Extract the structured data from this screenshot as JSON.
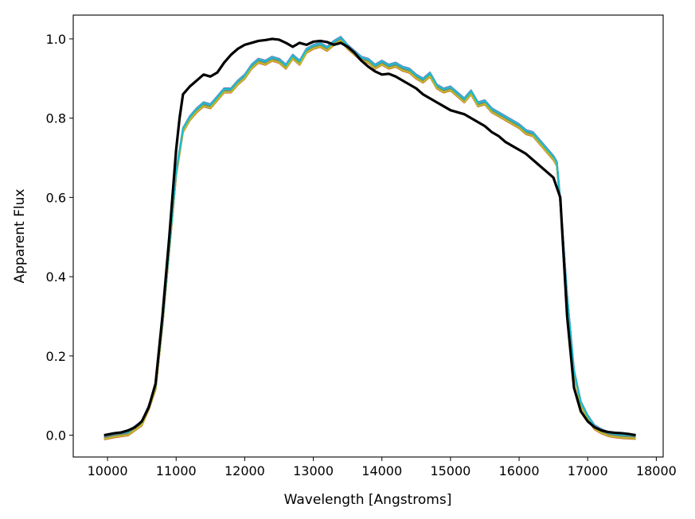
{
  "chart_data": {
    "type": "line",
    "xlabel": "Wavelength [Angstroms]",
    "ylabel": "Apparent Flux",
    "xlim": [
      9500,
      18100
    ],
    "ylim": [
      -0.055,
      1.06
    ],
    "xticks": [
      10000,
      11000,
      12000,
      13000,
      14000,
      15000,
      16000,
      17000,
      18000
    ],
    "xtick_labels": [
      "10000",
      "11000",
      "12000",
      "13000",
      "14000",
      "15000",
      "16000",
      "17000",
      "18000"
    ],
    "yticks": [
      0.0,
      0.2,
      0.4,
      0.6,
      0.8,
      1.0
    ],
    "ytick_labels": [
      "0.0",
      "0.2",
      "0.4",
      "0.6",
      "0.8",
      "1.0"
    ],
    "grid": false,
    "legend": "none",
    "bundle": {
      "colors": [
        "#1f77b4",
        "#ff7f0e",
        "#2ca02c",
        "#d62728",
        "#9467bd",
        "#8c564b",
        "#e377c2",
        "#7f7f7f",
        "#bcbd22",
        "#17becf"
      ],
      "x": [
        9950,
        10100,
        10300,
        10500,
        10600,
        10700,
        10800,
        10900,
        11000,
        11100,
        11200,
        11300,
        11400,
        11500,
        11600,
        11700,
        11800,
        11900,
        12000,
        12100,
        12200,
        12300,
        12400,
        12500,
        12600,
        12700,
        12800,
        12900,
        13000,
        13100,
        13200,
        13300,
        13400,
        13500,
        13600,
        13700,
        13800,
        13900,
        14000,
        14100,
        14200,
        14300,
        14400,
        14500,
        14600,
        14700,
        14800,
        14900,
        15000,
        15100,
        15200,
        15300,
        15400,
        15500,
        15600,
        15700,
        15800,
        15900,
        16000,
        16100,
        16200,
        16300,
        16400,
        16500,
        16550,
        16600,
        16700,
        16800,
        16900,
        17000,
        17100,
        17200,
        17300,
        17400,
        17500,
        17600,
        17700
      ],
      "y": [
        -0.005,
        0.0,
        0.005,
        0.03,
        0.07,
        0.12,
        0.28,
        0.47,
        0.66,
        0.77,
        0.8,
        0.82,
        0.835,
        0.83,
        0.85,
        0.87,
        0.87,
        0.89,
        0.905,
        0.93,
        0.945,
        0.94,
        0.95,
        0.945,
        0.93,
        0.955,
        0.94,
        0.97,
        0.98,
        0.985,
        0.975,
        0.99,
        1.0,
        0.98,
        0.965,
        0.95,
        0.945,
        0.93,
        0.94,
        0.93,
        0.935,
        0.925,
        0.92,
        0.905,
        0.895,
        0.91,
        0.88,
        0.87,
        0.875,
        0.86,
        0.845,
        0.865,
        0.835,
        0.84,
        0.82,
        0.81,
        0.8,
        0.79,
        0.78,
        0.765,
        0.76,
        0.74,
        0.72,
        0.7,
        0.685,
        0.59,
        0.35,
        0.16,
        0.08,
        0.045,
        0.02,
        0.01,
        0.003,
        0.0,
        -0.002,
        -0.003,
        -0.004
      ]
    },
    "series": [
      {
        "color": "#000000",
        "x": [
          9950,
          10100,
          10200,
          10300,
          10400,
          10500,
          10600,
          10700,
          10800,
          10900,
          11000,
          11050,
          11100,
          11200,
          11300,
          11400,
          11500,
          11600,
          11700,
          11800,
          11900,
          12000,
          12100,
          12200,
          12300,
          12400,
          12500,
          12600,
          12700,
          12800,
          12900,
          13000,
          13100,
          13200,
          13300,
          13400,
          13500,
          13600,
          13700,
          13800,
          13900,
          14000,
          14100,
          14200,
          14300,
          14400,
          14500,
          14600,
          14700,
          14800,
          14900,
          15000,
          15100,
          15200,
          15300,
          15400,
          15500,
          15600,
          15700,
          15800,
          15900,
          16000,
          16100,
          16200,
          16300,
          16400,
          16500,
          16600,
          16700,
          16800,
          16900,
          17000,
          17100,
          17200,
          17300,
          17400,
          17500,
          17600,
          17700
        ],
        "y": [
          0.0,
          0.005,
          0.007,
          0.012,
          0.02,
          0.035,
          0.07,
          0.13,
          0.3,
          0.5,
          0.72,
          0.8,
          0.86,
          0.88,
          0.895,
          0.91,
          0.905,
          0.915,
          0.94,
          0.96,
          0.975,
          0.985,
          0.99,
          0.995,
          0.997,
          1.0,
          0.998,
          0.99,
          0.98,
          0.99,
          0.985,
          0.993,
          0.995,
          0.992,
          0.985,
          0.99,
          0.98,
          0.965,
          0.945,
          0.93,
          0.918,
          0.91,
          0.912,
          0.905,
          0.895,
          0.885,
          0.875,
          0.86,
          0.85,
          0.84,
          0.83,
          0.82,
          0.815,
          0.81,
          0.8,
          0.79,
          0.78,
          0.765,
          0.755,
          0.74,
          0.73,
          0.72,
          0.71,
          0.695,
          0.68,
          0.665,
          0.65,
          0.6,
          0.3,
          0.12,
          0.06,
          0.035,
          0.02,
          0.012,
          0.008,
          0.006,
          0.005,
          0.003,
          0.0
        ]
      }
    ]
  }
}
